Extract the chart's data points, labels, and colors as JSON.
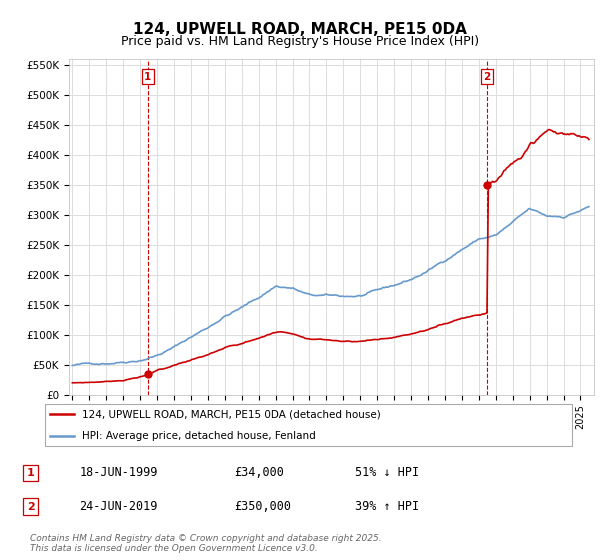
{
  "title": "124, UPWELL ROAD, MARCH, PE15 0DA",
  "subtitle": "Price paid vs. HM Land Registry's House Price Index (HPI)",
  "title_fontsize": 11,
  "subtitle_fontsize": 9,
  "ylim": [
    0,
    560000
  ],
  "yticks": [
    0,
    50000,
    100000,
    150000,
    200000,
    250000,
    300000,
    350000,
    400000,
    450000,
    500000,
    550000
  ],
  "ytick_labels": [
    "£0",
    "£50K",
    "£100K",
    "£150K",
    "£200K",
    "£250K",
    "£300K",
    "£350K",
    "£400K",
    "£450K",
    "£500K",
    "£550K"
  ],
  "xlim_start": 1994.8,
  "xlim_end": 2025.8,
  "red_line_color": "#cc0000",
  "blue_line_color": "#6699cc",
  "grid_color": "#dddddd",
  "bg_color": "#ffffff",
  "transaction1": {
    "year": 1999.46,
    "price": 34000,
    "label": "1",
    "date_str": "18-JUN-1999",
    "amount_str": "£34,000",
    "hpi_str": "51% ↓ HPI"
  },
  "transaction2": {
    "year": 2019.48,
    "price": 350000,
    "label": "2",
    "date_str": "24-JUN-2019",
    "amount_str": "£350,000",
    "hpi_str": "39% ↑ HPI"
  },
  "legend_line1": "124, UPWELL ROAD, MARCH, PE15 0DA (detached house)",
  "legend_line2": "HPI: Average price, detached house, Fenland",
  "footer": "Contains HM Land Registry data © Crown copyright and database right 2025.\nThis data is licensed under the Open Government Licence v3.0.",
  "hpi_key_years": [
    1995,
    1996,
    1997,
    1998,
    1999,
    2000,
    2001,
    2002,
    2003,
    2004,
    2005,
    2006,
    2007,
    2008,
    2009,
    2010,
    2011,
    2012,
    2013,
    2014,
    2015,
    2016,
    2017,
    2018,
    2019,
    2020,
    2021,
    2022,
    2023,
    2024,
    2025.5
  ],
  "hpi_key_vals": [
    49000,
    51000,
    54000,
    58000,
    63000,
    72000,
    85000,
    102000,
    118000,
    138000,
    152000,
    168000,
    188000,
    185000,
    172000,
    170000,
    168000,
    169000,
    175000,
    183000,
    193000,
    207000,
    225000,
    245000,
    262000,
    268000,
    288000,
    308000,
    295000,
    295000,
    312000
  ],
  "red_key_years_seg1": [
    1995,
    1996,
    1997,
    1998,
    1999.46
  ],
  "red_key_vals_seg1": [
    20000,
    21000,
    22500,
    25000,
    34000
  ],
  "red_key_years_seg2": [
    1999.46,
    2000,
    2001,
    2002,
    2003,
    2004,
    2005,
    2006,
    2007,
    2008,
    2009,
    2010,
    2011,
    2012,
    2013,
    2014,
    2015,
    2016,
    2017,
    2018,
    2019.48
  ],
  "red_key_vals_seg2": [
    34000,
    39000,
    46000,
    55000,
    64000,
    75000,
    82000,
    91000,
    102000,
    100000,
    93000,
    92000,
    91000,
    92000,
    95000,
    99000,
    105000,
    112000,
    122000,
    133000,
    143000
  ],
  "red_key_years_seg3": [
    2019.48,
    2020,
    2021,
    2022,
    2023,
    2024,
    2025.5
  ],
  "red_key_vals_seg3": [
    350000,
    358000,
    385000,
    420000,
    440000,
    435000,
    420000
  ]
}
